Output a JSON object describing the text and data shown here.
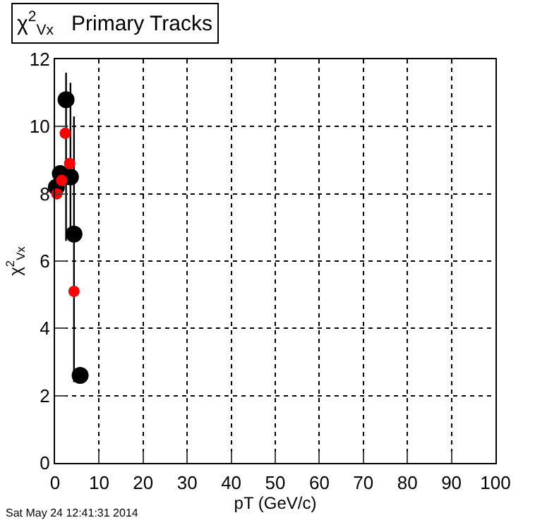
{
  "chart_data": {
    "type": "scatter",
    "title": "χ$^{2}$$_{Vx}$   Primary Tracks",
    "xlabel": "pT (GeV/c)",
    "ylabel": "χ$^{2}$$_{Vx}$",
    "annotations": [
      "Sat May 24 12:41:31 2014"
    ],
    "series": [
      {
        "color": "#000000",
        "x": [
          0.3,
          1.2,
          2.5,
          3.5,
          4.3,
          5.7
        ],
        "values": [
          8.2,
          8.6,
          10.8,
          8.5,
          6.8,
          2.6
        ],
        "errors": [
          null,
          null,
          [
            6.6,
            11.6
          ],
          [
            6.6,
            11.3
          ],
          [
            2.4,
            10.3
          ],
          null
        ]
      },
      {
        "color": "#ff0000",
        "x": [
          0.4,
          1.5,
          2.3,
          3.3,
          4.3
        ],
        "values": [
          8.0,
          8.4,
          9.8,
          8.9,
          5.1
        ]
      }
    ],
    "xlim": [
      0,
      100
    ],
    "xticks": [
      0,
      10,
      20,
      30,
      40,
      50,
      60,
      70,
      80,
      90,
      100
    ],
    "ylim": [
      0,
      12
    ],
    "yticks": [
      0,
      2,
      4,
      6,
      8,
      10,
      12
    ],
    "grid": true,
    "marker": "circle",
    "legend": false
  }
}
